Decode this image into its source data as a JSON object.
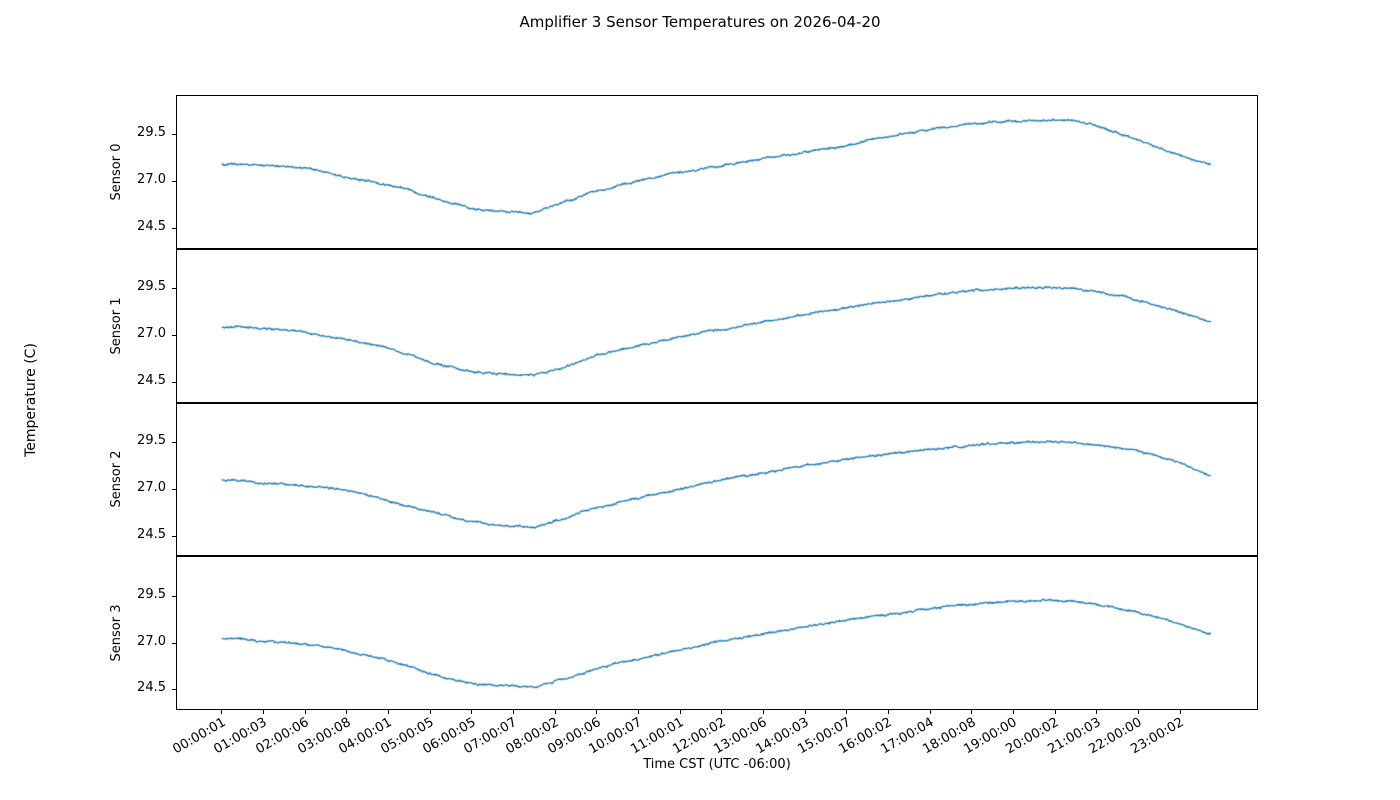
{
  "chart_data": {
    "type": "line",
    "title": "Amplifier 3 Sensor Temperatures on 2026-04-20",
    "xlabel": "Time CST (UTC -06:00)",
    "ylabel": "Temperature (C)",
    "legend": "none",
    "grid": false,
    "line_color": "#1f77b4",
    "ylim": [
      23.4,
      31.6
    ],
    "xlim_hours": [
      -1.1,
      24.87
    ],
    "y_tick_values": [
      29.5,
      27.0,
      24.5
    ],
    "y_tick_labels": [
      "29.5",
      "27.0",
      "24.5"
    ],
    "x_tick_hours": [
      0,
      1,
      2,
      3,
      4,
      5,
      6,
      7,
      8,
      9,
      10,
      11,
      12,
      13,
      14,
      15,
      16,
      17,
      18,
      19,
      20,
      21,
      22,
      23
    ],
    "x_tick_labels": [
      "00:00:01",
      "01:00:03",
      "02:00:06",
      "03:00:08",
      "04:00:01",
      "05:00:05",
      "06:00:05",
      "07:00:07",
      "08:00:02",
      "09:00:06",
      "10:00:07",
      "11:00:01",
      "12:00:02",
      "13:00:06",
      "14:00:03",
      "15:00:07",
      "16:00:02",
      "17:00:04",
      "18:00:08",
      "19:00:00",
      "20:00:02",
      "21:00:03",
      "22:00:00",
      "23:00:02"
    ],
    "x_hours": [
      0,
      1,
      2,
      3,
      4,
      5,
      6,
      6.5,
      7,
      7.5,
      7.8,
      8,
      9,
      10,
      11,
      12,
      13,
      14,
      15,
      16,
      17,
      18,
      19,
      20,
      20.5,
      21,
      22,
      23,
      23.75
    ],
    "series": [
      {
        "name": "Sensor 0",
        "values": [
          27.9,
          27.85,
          27.7,
          27.2,
          26.8,
          26.2,
          25.6,
          25.45,
          25.35,
          25.3,
          25.55,
          25.75,
          26.5,
          27.0,
          27.45,
          27.85,
          28.2,
          28.55,
          28.9,
          29.4,
          29.75,
          30.05,
          30.2,
          30.25,
          30.2,
          29.9,
          29.2,
          28.4,
          27.9
        ]
      },
      {
        "name": "Sensor 1",
        "values": [
          27.45,
          27.35,
          27.15,
          26.75,
          26.3,
          25.55,
          25.05,
          24.95,
          24.85,
          24.9,
          25.0,
          25.15,
          25.9,
          26.4,
          26.9,
          27.3,
          27.7,
          28.1,
          28.45,
          28.8,
          29.1,
          29.35,
          29.5,
          29.5,
          29.45,
          29.3,
          28.85,
          28.25,
          27.75
        ]
      },
      {
        "name": "Sensor 2",
        "values": [
          27.5,
          27.3,
          27.15,
          26.9,
          26.35,
          25.75,
          25.25,
          25.1,
          25.0,
          24.95,
          25.15,
          25.3,
          26.0,
          26.5,
          27.0,
          27.45,
          27.85,
          28.2,
          28.55,
          28.85,
          29.1,
          29.3,
          29.45,
          29.5,
          29.45,
          29.35,
          29.0,
          28.4,
          27.7
        ]
      },
      {
        "name": "Sensor 3",
        "values": [
          27.2,
          27.1,
          26.9,
          26.55,
          26.05,
          25.35,
          24.85,
          24.72,
          24.65,
          24.6,
          24.8,
          24.95,
          25.6,
          26.15,
          26.6,
          27.05,
          27.45,
          27.85,
          28.2,
          28.5,
          28.8,
          29.05,
          29.2,
          29.25,
          29.2,
          29.0,
          28.6,
          28.0,
          27.5
        ]
      }
    ]
  }
}
